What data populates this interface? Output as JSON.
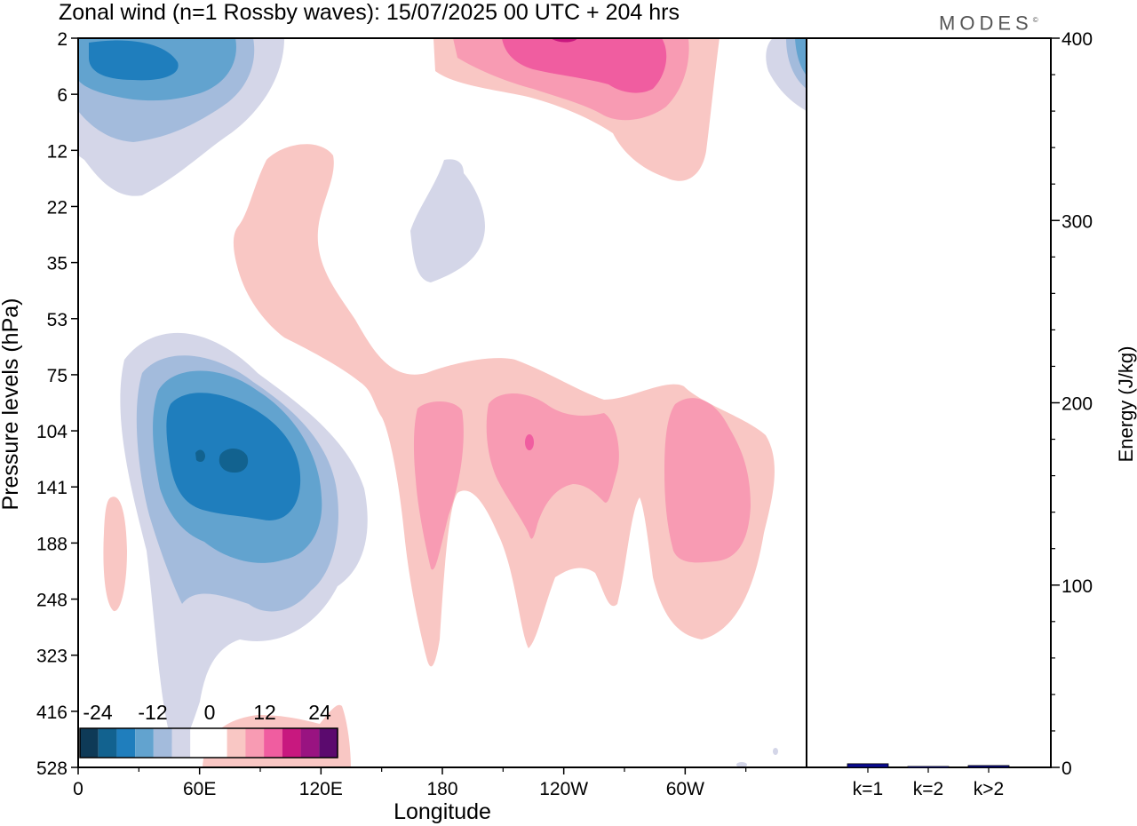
{
  "title": "Zonal wind (n=1 Rossby waves):  15/07/2025  00 UTC  + 204 hrs",
  "logo": "MODES",
  "colors": {
    "neg": [
      "#0e3a57",
      "#12628f",
      "#1f7ebd",
      "#62a3cf",
      "#a3bbdc",
      "#d4d6e8"
    ],
    "zero": "#ffffff",
    "pos": [
      "#f9c7c4",
      "#f89bb3",
      "#f05da0",
      "#c8187f",
      "#991381",
      "#5b0a6e"
    ],
    "bar": "#0b0c92"
  },
  "chart_data": [
    {
      "type": "heatmap",
      "xlabel": "Longitude",
      "ylabel": "Pressure levels (hPa)",
      "x_ticks": [
        "0",
        "60E",
        "120E",
        "180",
        "120W",
        "60W"
      ],
      "y_ticks": [
        "2",
        "6",
        "12",
        "22",
        "35",
        "53",
        "75",
        "104",
        "141",
        "188",
        "248",
        "323",
        "416",
        "528"
      ],
      "colorbar_labels": [
        "-24",
        "-12",
        "0",
        "12",
        "24"
      ],
      "fields": [
        {
          "sign": "negative",
          "lon_center": 40,
          "level_center": "141",
          "min_value": -24
        },
        {
          "sign": "negative",
          "lon_center": 30,
          "level_center": "2",
          "min_value": -20
        },
        {
          "sign": "positive",
          "lon_center": 235,
          "level_center": "2",
          "max_value": 16
        },
        {
          "sign": "positive",
          "lon_center": 230,
          "level_center": "141",
          "max_value": 14
        },
        {
          "sign": "negative",
          "lon_center": 185,
          "level_center": "22",
          "min_value": -4
        }
      ]
    },
    {
      "type": "bar",
      "ylabel": "Energy (J/kg)",
      "categories": [
        "k=1",
        "k=2",
        "k>2"
      ],
      "values": [
        2,
        0.5,
        1
      ],
      "ylim": [
        0,
        400
      ],
      "y_ticks": [
        "0",
        "100",
        "200",
        "300",
        "400"
      ]
    }
  ]
}
